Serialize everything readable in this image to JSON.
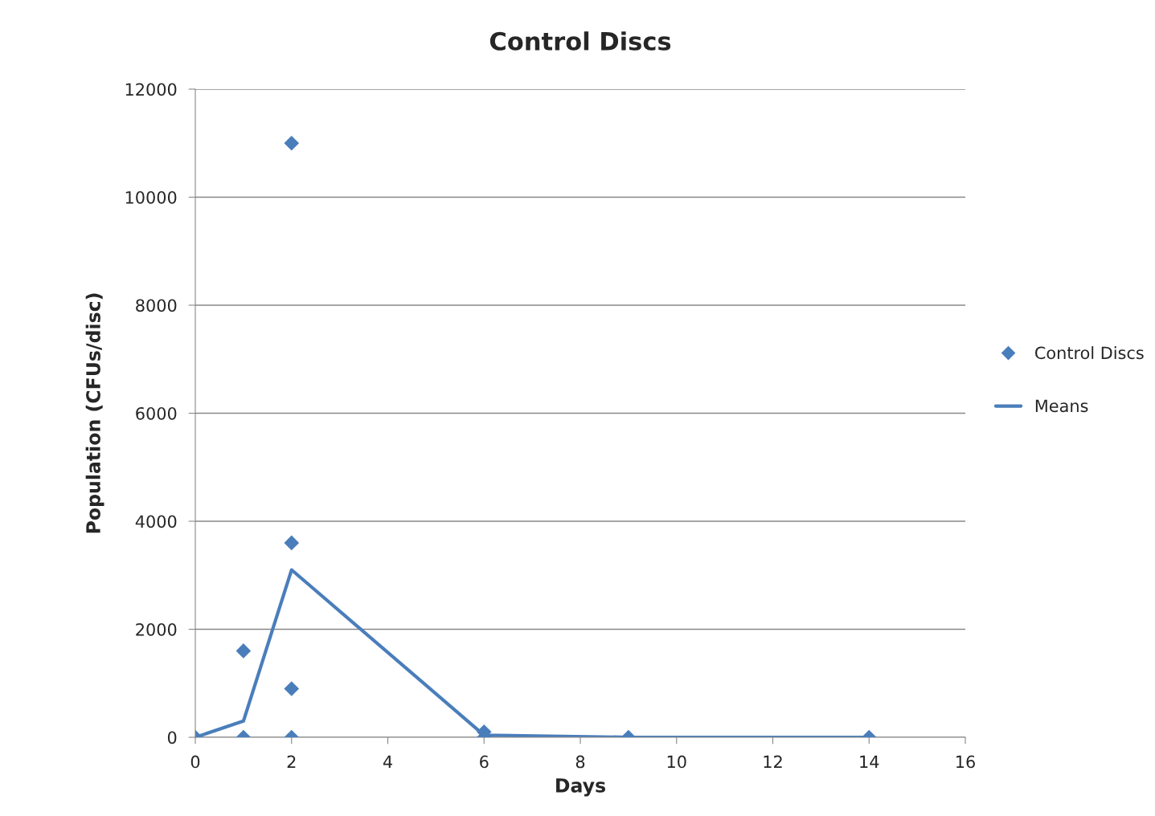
{
  "chart_data": {
    "type": "scatter",
    "title": "Control Discs",
    "xlabel": "Days",
    "ylabel": "Population (CFUs/disc)",
    "xlim": [
      0,
      16
    ],
    "xticks": [
      0,
      2,
      4,
      6,
      8,
      10,
      12,
      14,
      16
    ],
    "ylim": [
      0,
      12000
    ],
    "yticks": [
      0,
      2000,
      4000,
      6000,
      8000,
      10000,
      12000
    ],
    "grid": "y",
    "legend": "right",
    "series": [
      {
        "name": "Control Discs",
        "marker": "diamond",
        "color": "#4a7ebb",
        "x": [
          0,
          1,
          1,
          2,
          2,
          2,
          2,
          6,
          6,
          9,
          14
        ],
        "values": [
          0,
          1600,
          0,
          11000,
          3600,
          900,
          0,
          100,
          0,
          0,
          0
        ]
      },
      {
        "name": "Means",
        "type": "line",
        "marker": "none",
        "line_style": "solid",
        "color": "#4a7ebb",
        "x": [
          0,
          1,
          2,
          6,
          9,
          14
        ],
        "values": [
          0,
          300,
          3100,
          40,
          0,
          0
        ]
      }
    ]
  }
}
